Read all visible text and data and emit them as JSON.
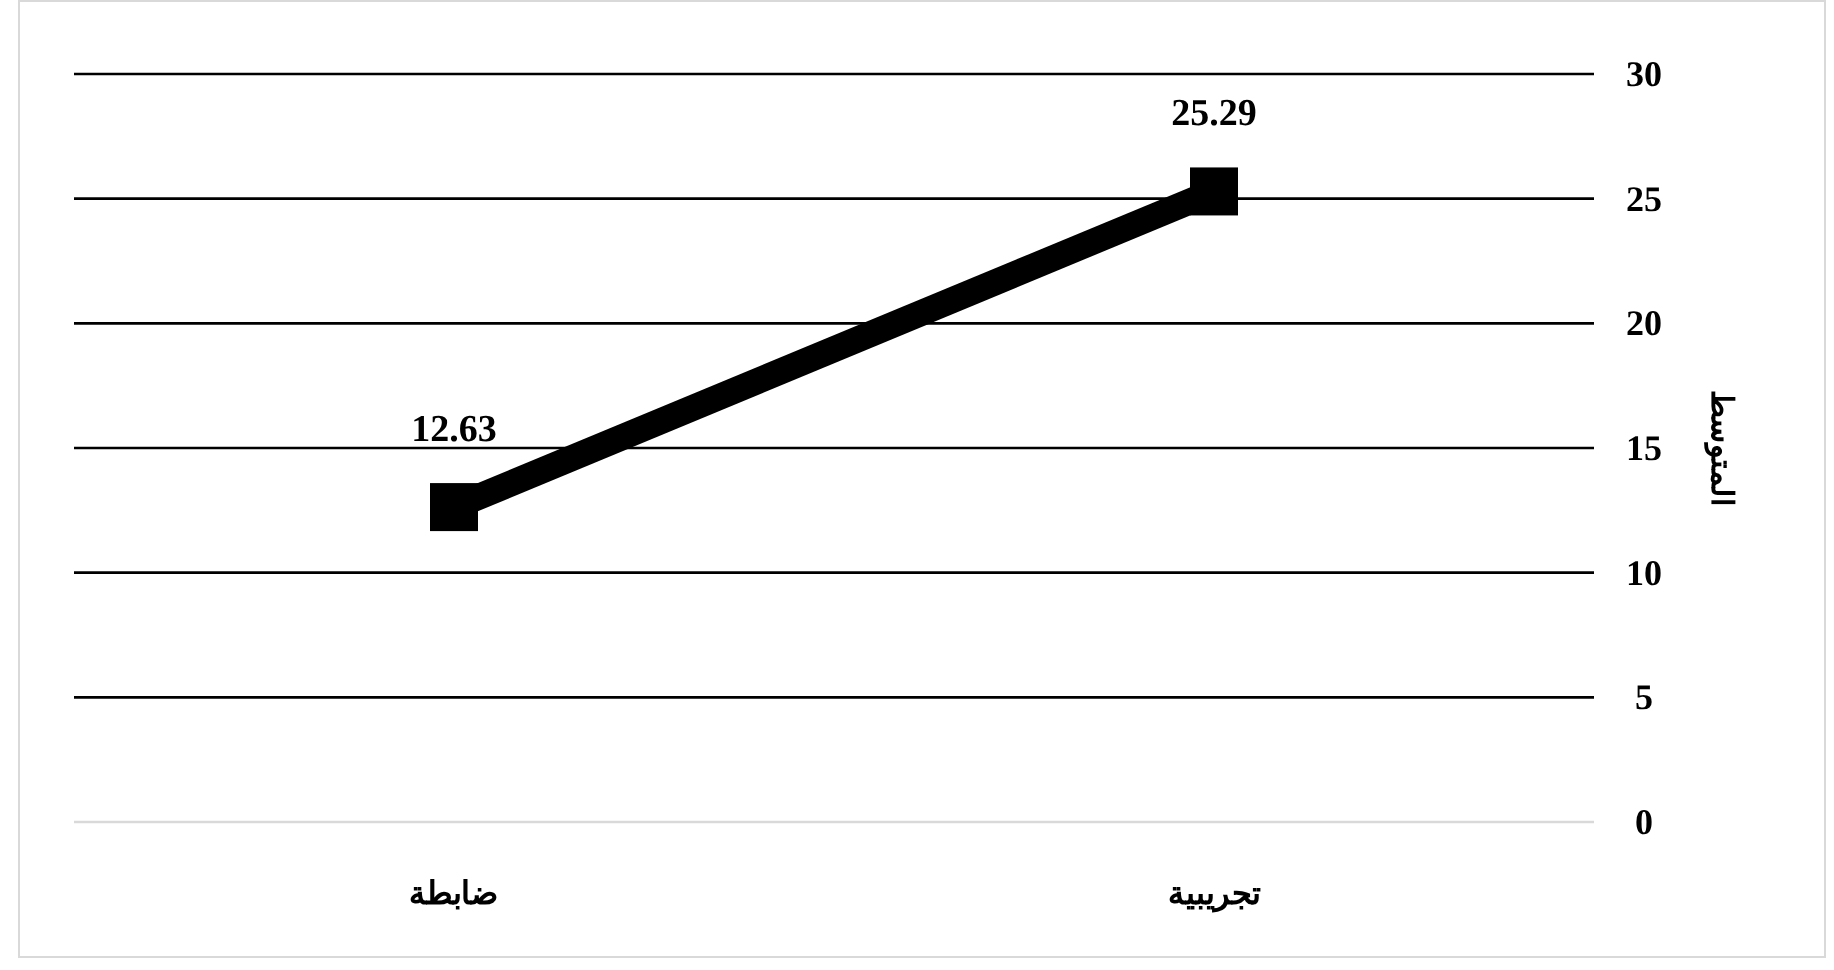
{
  "chart_data": {
    "type": "line",
    "ylabel": "المتوسط",
    "categories": [
      "ضابطة",
      "تجريبية"
    ],
    "series": [
      {
        "color": "#000000",
        "values": [
          12.63,
          25.29
        ]
      }
    ],
    "ylim": [
      0,
      30
    ],
    "yticks": [
      0,
      5,
      10,
      15,
      20,
      25,
      30
    ],
    "grid": "y",
    "marker": "square",
    "line_style": "solid",
    "data_labels": true
  }
}
